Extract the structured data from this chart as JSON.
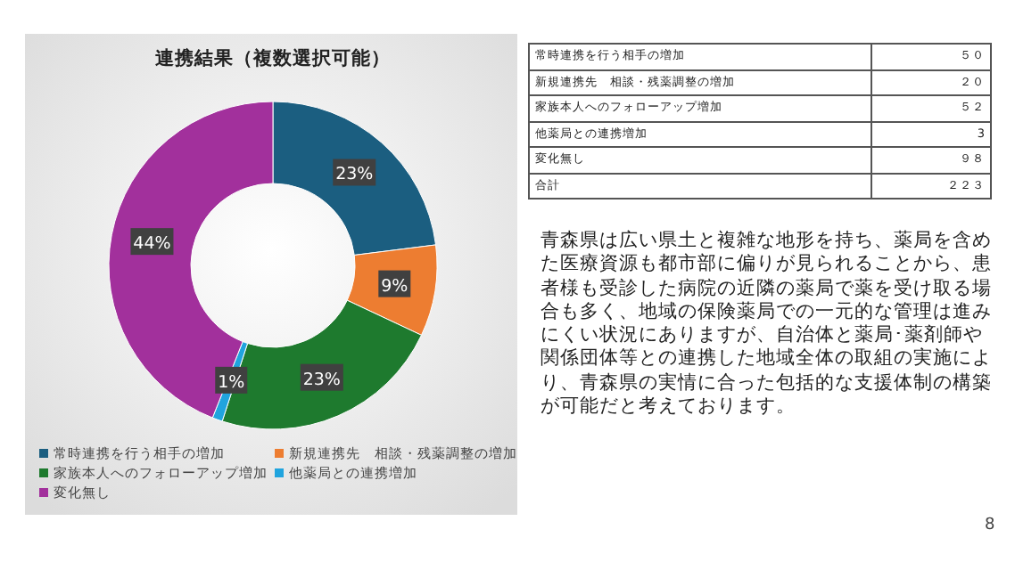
{
  "chart_data": [
    {
      "type": "donut",
      "title": "連携結果（複数選択可能）",
      "categories": [
        "常時連携を行う相手の増加",
        "新規連携先　相談・残薬調整の増加",
        "家族本人へのフォローアップ増加",
        "他薬局との連携増加",
        "変化無し"
      ],
      "values": [
        23,
        9,
        23,
        1,
        44
      ],
      "value_labels": [
        "23%",
        "9%",
        "23%",
        "1%",
        "44%"
      ],
      "colors": [
        "#1b5e80",
        "#ed7d31",
        "#1e7a2e",
        "#20a4de",
        "#a2309c"
      ],
      "legend": "bottom"
    },
    {
      "type": "other",
      "categories": [
        "常時連携を行う相手の増加",
        "新規連携先　相談・残薬調整の増加",
        "家族本人へのフォローアップ増加",
        "他薬局との連携増加",
        "変化無し",
        "合計"
      ],
      "value_labels": [
        "５０",
        "２０",
        "５２",
        "3",
        "９８",
        "２２３"
      ],
      "annotations": [
        "青森県は広い県土と複雑な地形を持ち、薬局を含めた医療資源も都市部に偏りが見られることから、患者様も受診した病院の近隣の薬局で薬を受け取る場合も多く、地域の保険薬局での一元的な管理は進みにくい状況にありますが、自治体と薬局･薬剤師や関係団体等との連携した地域全体の取組の実施により、青森県の実情に合った包括的な支援体制の構築が可能だと考えております。",
        "8"
      ]
    }
  ]
}
